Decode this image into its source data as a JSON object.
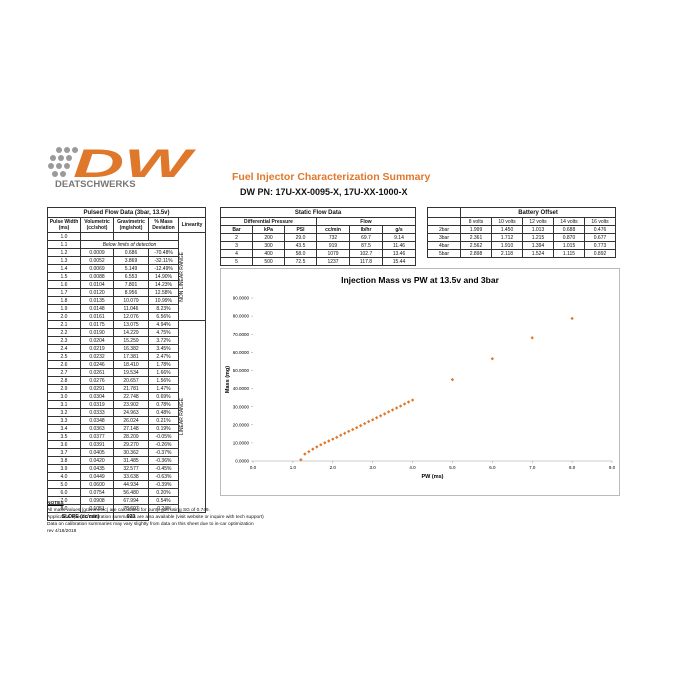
{
  "header": {
    "logo": "DW",
    "brand": "DEATSCHWERKS",
    "title": "Fuel Injector Characterization Summary",
    "part_number": "DW PN: 17U-XX-0095-X, 17U-XX-1000-X"
  },
  "pulsed": {
    "title": "Pulsed Flow Data (3bar, 13.5v)",
    "columns": [
      [
        "Pulse Width",
        "(ms)"
      ],
      [
        "Volumetric",
        "(cc/shot)"
      ],
      [
        "Gravimetric",
        "(mg/shot)"
      ],
      [
        "% Mass",
        "Deviation"
      ],
      [
        "Linearity"
      ]
    ],
    "ranges": [
      "NON LINEAR RANGE",
      "LINEAR RANGE"
    ],
    "rows": [
      [
        "1.0"
      ],
      [
        "1.1",
        "Below limits of detection"
      ],
      [
        "1.2",
        "0.0009",
        "0.686",
        "-70.48%"
      ],
      [
        "1.3",
        "0.0052",
        "3.869",
        "-32.11%"
      ],
      [
        "1.4",
        "0.0069",
        "5.149",
        "-12.49%"
      ],
      [
        "1.5",
        "0.0088",
        "6.553",
        "14.90%"
      ],
      [
        "1.6",
        "0.0104",
        "7.801",
        "14.23%"
      ],
      [
        "1.7",
        "0.0120",
        "8.956",
        "12.58%"
      ],
      [
        "1.8",
        "0.0135",
        "10.079",
        "10.99%"
      ],
      [
        "1.9",
        "0.0148",
        "11.046",
        "8.23%"
      ],
      [
        "2.0",
        "0.0161",
        "12.076",
        "6.56%"
      ],
      [
        "2.1",
        "0.0175",
        "13.075",
        "4.94%"
      ],
      [
        "2.2",
        "0.0190",
        "14.229",
        "4.75%"
      ],
      [
        "2.3",
        "0.0204",
        "15.259",
        "3.72%"
      ],
      [
        "2.4",
        "0.0219",
        "16.382",
        "3.45%"
      ],
      [
        "2.5",
        "0.0232",
        "17.381",
        "2.47%"
      ],
      [
        "2.6",
        "0.0246",
        "18.410",
        "1.78%"
      ],
      [
        "2.7",
        "0.0261",
        "19.534",
        "1.66%"
      ],
      [
        "2.8",
        "0.0276",
        "20.657",
        "1.56%"
      ],
      [
        "2.9",
        "0.0291",
        "21.781",
        "1.47%"
      ],
      [
        "3.0",
        "0.0304",
        "22.748",
        "0.69%"
      ],
      [
        "3.1",
        "0.0319",
        "23.902",
        "0.78%"
      ],
      [
        "3.2",
        "0.0333",
        "24.963",
        "0.48%"
      ],
      [
        "3.3",
        "0.0348",
        "26.024",
        "0.21%"
      ],
      [
        "3.4",
        "0.0363",
        "27.148",
        "0.19%"
      ],
      [
        "3.5",
        "0.0377",
        "28.209",
        "-0.05%"
      ],
      [
        "3.6",
        "0.0391",
        "29.270",
        "-0.26%"
      ],
      [
        "3.7",
        "0.0405",
        "30.362",
        "-0.37%"
      ],
      [
        "3.8",
        "0.0420",
        "31.485",
        "-0.36%"
      ],
      [
        "3.9",
        "0.0435",
        "32.577",
        "-0.45%"
      ],
      [
        "4.0",
        "0.0449",
        "33.638",
        "-0.63%"
      ],
      [
        "5.0",
        "0.0600",
        "44.934",
        "-0.39%"
      ],
      [
        "6.0",
        "0.0754",
        "56.480",
        "0.20%"
      ],
      [
        "7.0",
        "0.0908",
        "67.994",
        "0.54%"
      ],
      [
        "8.0",
        "0.1051",
        "78.697",
        "-0.24%"
      ]
    ],
    "slope_label": "SLOPE (cc/min)",
    "slope": "923"
  },
  "static": {
    "title": "Static Flow Data",
    "groups": [
      "Differential Pressure",
      "Flow"
    ],
    "columns": [
      "Bar",
      "kPa",
      "PSI",
      "cc/min",
      "lb/hr",
      "g/s"
    ],
    "rows": [
      [
        "2",
        "200",
        "29.0",
        "732",
        "69.7",
        "9.14"
      ],
      [
        "3",
        "300",
        "43.5",
        "919",
        "87.5",
        "11.46"
      ],
      [
        "4",
        "400",
        "58.0",
        "1079",
        "102.7",
        "13.46"
      ],
      [
        "5",
        "500",
        "72.5",
        "1237",
        "117.8",
        "15.44"
      ]
    ]
  },
  "battery": {
    "title": "Battery Offset",
    "columns": [
      "8 volts",
      "10 volts",
      "12 volts",
      "14 volts",
      "16 volts"
    ],
    "rows": [
      [
        "2bar",
        "1.999",
        "1.450",
        "1.013",
        "0.688",
        "0.476"
      ],
      [
        "3bar",
        "2.361",
        "1.712",
        "1.215",
        "0.870",
        "0.677"
      ],
      [
        "4bar",
        "2.562",
        "1.910",
        "1.394",
        "1.015",
        "0.773"
      ],
      [
        "5bar",
        "2.898",
        "2.118",
        "1.524",
        "1.115",
        "0.892"
      ]
    ]
  },
  "chart": {
    "type": "scatter",
    "title": "Injection Mass vs PW at 13.5v and 3bar",
    "x_label": "PW (ms)",
    "y_label": "Mass (mg)",
    "color": "#e0782c",
    "x": [
      1.2,
      1.3,
      1.4,
      1.5,
      1.6,
      1.7,
      1.8,
      1.9,
      2.0,
      2.1,
      2.2,
      2.3,
      2.4,
      2.5,
      2.6,
      2.7,
      2.8,
      2.9,
      3.0,
      3.1,
      3.2,
      3.3,
      3.4,
      3.5,
      3.6,
      3.7,
      3.8,
      3.9,
      4.0,
      5.0,
      6.0,
      7.0,
      8.0
    ],
    "values": [
      0.686,
      3.869,
      5.149,
      6.553,
      7.801,
      8.956,
      10.079,
      11.046,
      12.076,
      13.075,
      14.229,
      15.259,
      16.382,
      17.381,
      18.41,
      19.534,
      20.657,
      21.781,
      22.748,
      23.902,
      24.963,
      26.024,
      27.148,
      28.209,
      29.27,
      30.362,
      31.485,
      32.577,
      33.638,
      44.934,
      56.48,
      67.994,
      78.697
    ],
    "xlim": [
      0,
      9
    ],
    "ylim": [
      0,
      90
    ],
    "xticks": [
      {
        "value": 0,
        "label": "0.0"
      },
      {
        "value": 1,
        "label": "1.0"
      },
      {
        "value": 2,
        "label": "2.0"
      },
      {
        "value": 3,
        "label": "3.0"
      },
      {
        "value": 4,
        "label": "4.0"
      },
      {
        "value": 5,
        "label": "5.0"
      },
      {
        "value": 6,
        "label": "6.0"
      },
      {
        "value": 7,
        "label": "7.0"
      },
      {
        "value": 8,
        "label": "8.0"
      },
      {
        "value": 9,
        "label": "9.0"
      }
    ],
    "yticks": [
      {
        "value": 0,
        "label": "0.0000"
      },
      {
        "value": 10,
        "label": "10.0000"
      },
      {
        "value": 20,
        "label": "20.0000"
      },
      {
        "value": 30,
        "label": "30.0000"
      },
      {
        "value": 40,
        "label": "40.0000"
      },
      {
        "value": 50,
        "label": "50.0000"
      },
      {
        "value": 60,
        "label": "60.0000"
      },
      {
        "value": 70,
        "label": "70.0000"
      },
      {
        "value": 80,
        "label": "80.0000"
      },
      {
        "value": 90,
        "label": "90.0000"
      }
    ]
  },
  "notes": {
    "title": "NOTES",
    "lines": [
      "All mass values (gravimetric) are calculated for pump gas using SG of 0.749.",
      "Application specific calibration summaries are also available (visit website or inquire with tech support)",
      "Data on calibration summaries may vary slightly from data on this sheet due to in-car optimization",
      "rev 4/18/2018"
    ]
  }
}
